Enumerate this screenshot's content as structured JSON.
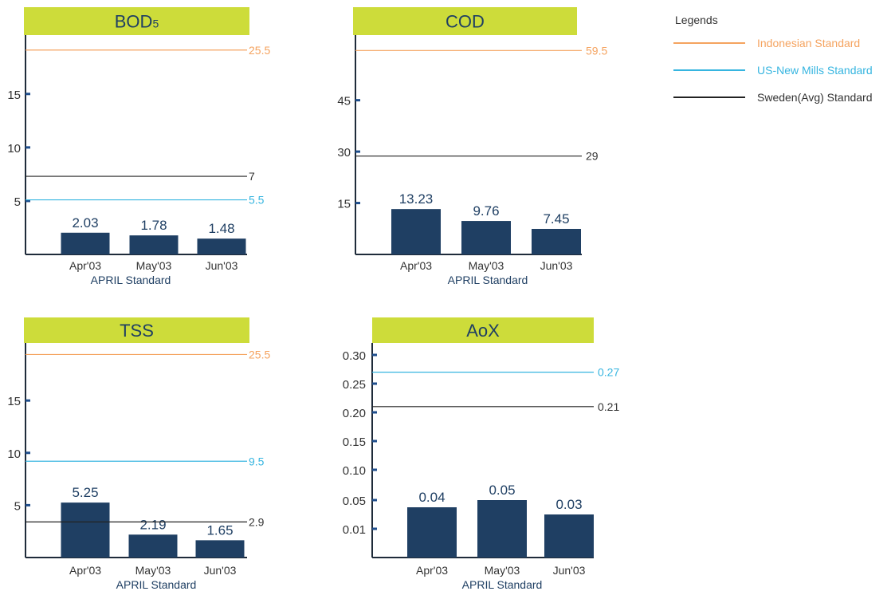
{
  "colors": {
    "title_bg": "#cddc3a",
    "bar": "#1f3f63",
    "axis": "#1f2b3a",
    "tick_accent": "#1f4e8c",
    "indonesian": "#f5a35f",
    "us_new_mills": "#36b5e0",
    "sweden": "#222222",
    "text_dark": "#1f3f63",
    "text_body": "#333333"
  },
  "legend": {
    "title": "Legends",
    "items": [
      {
        "key": "indonesian",
        "label": "Indonesian Standard"
      },
      {
        "key": "us_new_mills",
        "label": "US-New Mills Standard"
      },
      {
        "key": "sweden",
        "label": "Sweden(Avg) Standard"
      }
    ]
  },
  "chart_data": [
    {
      "type": "bar",
      "title": "BOD5",
      "title_main": "BOD",
      "title_sub": "5",
      "xlabel": "APRIL Standard",
      "categories": [
        "Apr'03",
        "May'03",
        "Jun'03"
      ],
      "values": [
        2.03,
        1.78,
        1.48
      ],
      "value_labels": [
        "2.03",
        "1.78",
        "1.48"
      ],
      "yticks": [
        "5",
        "10",
        "15"
      ],
      "ylim": [
        0,
        20.5
      ],
      "y_scale": "linear",
      "reference_lines": [
        {
          "key": "indonesian",
          "value": 25.5,
          "label": "25.5",
          "display": 19.1
        },
        {
          "key": "sweden",
          "value": 7,
          "label": "7",
          "display": 7.3
        },
        {
          "key": "us_new_mills",
          "value": 5.5,
          "label": "5.5",
          "display": 5.1
        }
      ]
    },
    {
      "type": "bar",
      "title": "COD",
      "title_main": "COD",
      "title_sub": "",
      "xlabel": "APRIL Standard",
      "categories": [
        "Apr'03",
        "May'03",
        "Jun'03"
      ],
      "values": [
        13.23,
        9.76,
        7.45
      ],
      "value_labels": [
        "13.23",
        "9.76",
        "7.45"
      ],
      "yticks": [
        "15",
        "30",
        "45"
      ],
      "ylim": [
        0,
        64
      ],
      "y_scale": "linear",
      "reference_lines": [
        {
          "key": "indonesian",
          "value": 59.5,
          "label": "59.5",
          "display": 59.5
        },
        {
          "key": "sweden",
          "value": 29,
          "label": "29",
          "display": 28.7
        }
      ]
    },
    {
      "type": "bar",
      "title": "TSS",
      "title_main": "TSS",
      "title_sub": "",
      "xlabel": "APRIL Standard",
      "categories": [
        "Apr'03",
        "May'03",
        "Jun'03"
      ],
      "values": [
        5.25,
        2.19,
        1.65
      ],
      "value_labels": [
        "5.25",
        "2.19",
        "1.65"
      ],
      "yticks": [
        "5",
        "10",
        "15"
      ],
      "ylim": [
        0,
        20.5
      ],
      "y_scale": "linear",
      "reference_lines": [
        {
          "key": "indonesian",
          "value": 25.5,
          "label": "25.5",
          "display": 19.4
        },
        {
          "key": "us_new_mills",
          "value": 9.5,
          "label": "9.5",
          "display": 9.2
        },
        {
          "key": "sweden",
          "value": 2.9,
          "label": "2.9",
          "display": 3.4
        }
      ]
    },
    {
      "type": "bar",
      "title": "AoX",
      "title_main": "AoX",
      "title_sub": "",
      "xlabel": "APRIL Standard",
      "categories": [
        "Apr'03",
        "May'03",
        "Jun'03"
      ],
      "values": [
        0.04,
        0.05,
        0.03
      ],
      "value_labels": [
        "0.04",
        "0.05",
        "0.03"
      ],
      "yticks": [
        "0.01",
        "0.05",
        "0.10",
        "0.15",
        "0.20",
        "0.25",
        "0.30"
      ],
      "y_scale": "categorical",
      "reference_lines": [
        {
          "key": "us_new_mills",
          "value": 0.27,
          "label": "0.27"
        },
        {
          "key": "sweden",
          "value": 0.21,
          "label": "0.21"
        }
      ]
    }
  ]
}
